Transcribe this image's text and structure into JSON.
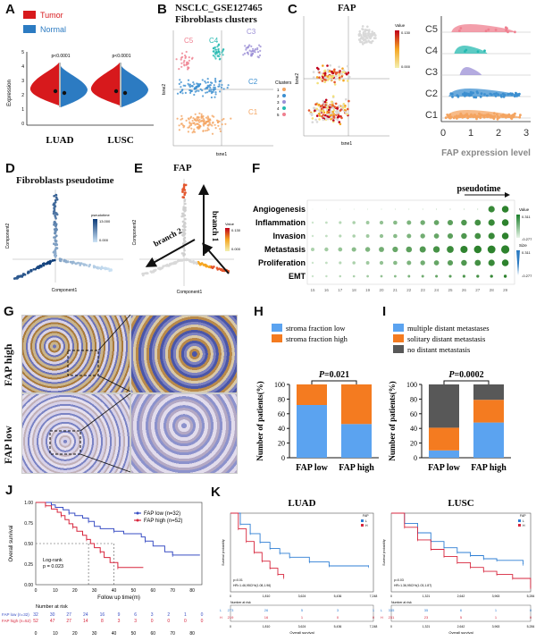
{
  "panel_letters": {
    "a": "A",
    "b": "B",
    "c": "C",
    "d": "D",
    "e": "E",
    "f": "F",
    "g": "G",
    "h": "H",
    "i": "I",
    "j": "J",
    "k": "K"
  },
  "panelA": {
    "legend": [
      "Tumor",
      "Normal"
    ],
    "ylabel": "Expression",
    "yticks": [
      "0",
      "1",
      "2",
      "3",
      "4",
      "5"
    ],
    "xcats": [
      "LUAD",
      "LUSC"
    ],
    "pvals": [
      "p<0.0001",
      "p<0.0001"
    ],
    "colors": {
      "tumor": "#d7191c",
      "normal": "#2c7bc2"
    }
  },
  "panelB": {
    "title1": "NSCLC_GSE127465",
    "title2": "Fibroblasts clusters",
    "xlabel": "tsne1",
    "ylabel": "tsne2",
    "legend_title": "Clusters",
    "clusters": [
      "1",
      "2",
      "3",
      "4",
      "5"
    ],
    "cluster_labels": [
      "C1",
      "C2",
      "C3",
      "C4",
      "C5"
    ],
    "colors": [
      "#f4a460",
      "#3c8fd0",
      "#9b8fd6",
      "#25b9b0",
      "#ef7f8f"
    ]
  },
  "panelC": {
    "title": "FAP",
    "xlabel": "tsne1",
    "ylabel": "tsne2",
    "colorbar_title": "Value",
    "colorbar_max": "0.130",
    "colorbar_min": "0.000",
    "ridge_categories": [
      "C5",
      "C4",
      "C3",
      "C2",
      "C1"
    ],
    "ridge_xticks": [
      "0",
      "1",
      "2",
      "3"
    ],
    "ridge_xlabel": "FAP expression level"
  },
  "panelD": {
    "title": "Fibroblasts pseudotime",
    "xlabel": "Component1",
    "ylabel": "Component2",
    "colorbar_title": "pseudotime",
    "colorbar_max": "13.000",
    "colorbar_min": "0.000"
  },
  "panelE": {
    "title": "FAP",
    "xlabel": "Component1",
    "ylabel": "Component2",
    "colorbar_title": "Value",
    "colorbar_max": "0.130",
    "colorbar_min": "0.000",
    "branch1": "branch 1",
    "branch2": "branch 2"
  },
  "panelF": {
    "header": "pseudotime",
    "rows": [
      "Angiogenesis",
      "Inflammation",
      "Invasion",
      "Metastasis",
      "Proliferation",
      "EMT"
    ],
    "cols": [
      "15",
      "16",
      "17",
      "18",
      "19",
      "20",
      "21",
      "22",
      "23",
      "24",
      "25",
      "26",
      "27",
      "28",
      "29"
    ],
    "value_title": "Value",
    "value_max": "0.311",
    "value_min": "-0.277",
    "size_title": "Size",
    "size_max": "0.311",
    "size_min": "-0.277"
  },
  "panelG": {
    "row_labels": [
      "FAP high",
      "FAP low"
    ]
  },
  "chart_data": [
    {
      "id": "H",
      "type": "bar",
      "categories": [
        "FAP low",
        "FAP high"
      ],
      "series": [
        {
          "name": "stroma fraction low",
          "values": [
            72,
            46
          ],
          "color": "#5ba3f0"
        },
        {
          "name": "stroma fraction high",
          "values": [
            28,
            54
          ],
          "color": "#f47b20"
        }
      ],
      "ylabel": "Number of patients(%)",
      "ylim": [
        0,
        100
      ],
      "yticks": [
        "0",
        "20",
        "40",
        "60",
        "80",
        "100"
      ],
      "annotation": "P=0.021"
    },
    {
      "id": "I",
      "type": "bar",
      "categories": [
        "FAP low",
        "FAP high"
      ],
      "series": [
        {
          "name": "multiple distant metastases",
          "values": [
            10,
            48
          ],
          "color": "#5ba3f0"
        },
        {
          "name": "solitary distant metastasis",
          "values": [
            31,
            31
          ],
          "color": "#f47b20"
        },
        {
          "name": "no distant metastasis",
          "values": [
            59,
            21
          ],
          "color": "#585858"
        }
      ],
      "ylabel": "Number of patients(%)",
      "ylim": [
        0,
        100
      ],
      "yticks": [
        "0",
        "20",
        "40",
        "60",
        "80",
        "100"
      ],
      "annotation": "P=0.0002"
    },
    {
      "id": "J",
      "type": "line",
      "ylabel": "Overall survival",
      "xlabel": "Follow up time(m)",
      "yticks": [
        "0.00",
        "0.25",
        "0.50",
        "0.75",
        "1.00"
      ],
      "xticks": [
        "0",
        "10",
        "20",
        "30",
        "40",
        "50",
        "60",
        "70",
        "80"
      ],
      "series": [
        {
          "name": "FAP low (n=32)",
          "color": "#3a4fc4",
          "x": [
            0,
            8,
            10,
            14,
            17,
            20,
            24,
            27,
            30,
            33,
            40,
            45,
            54,
            56,
            60,
            66,
            70,
            84
          ],
          "y": [
            1.0,
            0.97,
            0.94,
            0.91,
            0.87,
            0.84,
            0.81,
            0.77,
            0.71,
            0.68,
            0.65,
            0.62,
            0.58,
            0.53,
            0.47,
            0.4,
            0.36,
            0.36
          ]
        },
        {
          "name": "FAP high (n=52)",
          "color": "#d7263d",
          "x": [
            0,
            5,
            8,
            11,
            13,
            15,
            17,
            19,
            21,
            24,
            26,
            28,
            30,
            33,
            35,
            38,
            42,
            55
          ],
          "y": [
            1.0,
            0.96,
            0.92,
            0.88,
            0.84,
            0.79,
            0.74,
            0.7,
            0.65,
            0.6,
            0.55,
            0.5,
            0.45,
            0.4,
            0.33,
            0.27,
            0.21,
            0.21
          ]
        }
      ],
      "annotation": [
        "Log-rank",
        "p = 0.023"
      ],
      "risk_table": {
        "title": "Number at risk",
        "rows": [
          {
            "label": "FAP low (n=32)",
            "values": [
              "32",
              "30",
              "27",
              "24",
              "16",
              "9",
              "6",
              "3",
              "2",
              "1",
              "0"
            ]
          },
          {
            "label": "FAP high (n=52)",
            "values": [
              "52",
              "47",
              "27",
              "14",
              "8",
              "3",
              "3",
              "0",
              "0",
              "0",
              "0"
            ]
          }
        ]
      }
    },
    {
      "id": "K-LUAD",
      "type": "line",
      "title": "LUAD",
      "ylabel": "Survival probability",
      "xlabel": "Overall survival",
      "xticks": [
        "0",
        "1,810",
        "3,624",
        "5,436",
        "7,248"
      ],
      "legend_title": "FAP",
      "legend": [
        "L",
        "H"
      ],
      "colors": [
        "#2f7fd4",
        "#d7263d"
      ],
      "series": [
        {
          "name": "L",
          "x": [
            0,
            500,
            1000,
            1500,
            2000,
            2500,
            3000,
            4000,
            5000,
            7000
          ],
          "y": [
            1.0,
            0.86,
            0.74,
            0.63,
            0.55,
            0.49,
            0.44,
            0.38,
            0.33,
            0.32
          ]
        },
        {
          "name": "H",
          "x": [
            0,
            400,
            800,
            1200,
            1600,
            2000,
            2400,
            2700
          ],
          "y": [
            1.0,
            0.8,
            0.64,
            0.5,
            0.39,
            0.3,
            0.22,
            0.18
          ]
        }
      ],
      "stats": [
        "p=0.01",
        "HR=1.46,95CI%(1.08,1.96)"
      ],
      "risk_table": {
        "title": "Number at risk",
        "rows": [
          {
            "label": "L",
            "values": [
              "273",
              "26",
              "5",
              "3",
              "1"
            ]
          },
          {
            "label": "H",
            "values": [
              "219",
              "16",
              "1",
              "0",
              "0"
            ]
          }
        ]
      }
    },
    {
      "id": "K-LUSC",
      "type": "line",
      "title": "LUSC",
      "ylabel": "Survival probability",
      "xlabel": "Overall survival",
      "xticks": [
        "0",
        "1,321",
        "2,642",
        "3,963",
        "5,284"
      ],
      "legend_title": "FAP",
      "legend": [
        "L",
        "H"
      ],
      "colors": [
        "#2f7fd4",
        "#d7263d"
      ],
      "series": [
        {
          "name": "L",
          "x": [
            0,
            500,
            1000,
            1500,
            2000,
            2500,
            3000,
            3500,
            4000,
            5000
          ],
          "y": [
            1.0,
            0.87,
            0.75,
            0.64,
            0.56,
            0.5,
            0.46,
            0.42,
            0.4,
            0.35
          ]
        },
        {
          "name": "H",
          "x": [
            0,
            500,
            1000,
            1500,
            2000,
            2500,
            3000,
            3500,
            4000,
            4600,
            5280
          ],
          "y": [
            1.0,
            0.82,
            0.66,
            0.54,
            0.45,
            0.37,
            0.31,
            0.26,
            0.22,
            0.17,
            0.05
          ]
        }
      ],
      "stats": [
        "p=0.03",
        "HR=1.36,95CI%(1.03,1.87)"
      ],
      "risk_table": {
        "title": "Number at risk",
        "rows": [
          {
            "label": "L",
            "values": [
              "335",
              "35",
              "6",
              "1",
              "0"
            ]
          },
          {
            "label": "H",
            "values": [
              "231",
              "23",
              "5",
              "1",
              "0"
            ]
          }
        ]
      }
    }
  ]
}
